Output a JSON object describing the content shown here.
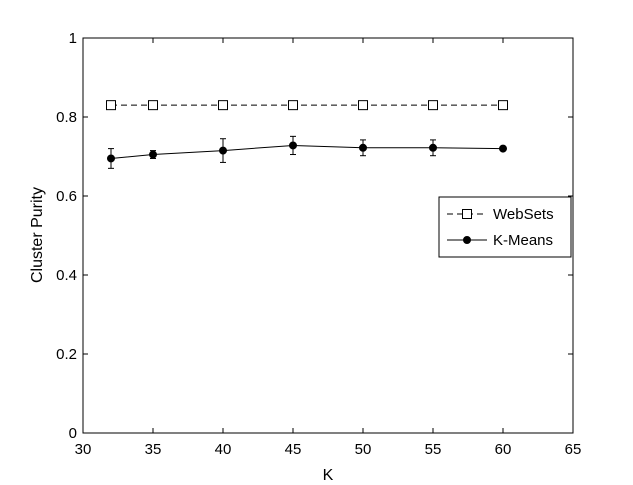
{
  "chart_data": {
    "type": "line",
    "xlabel": "K",
    "ylabel": "Cluster Purity",
    "xlim": [
      30,
      65
    ],
    "ylim": [
      0,
      1
    ],
    "xticks": [
      30,
      35,
      40,
      45,
      50,
      55,
      60,
      65
    ],
    "yticks": [
      0,
      0.2,
      0.4,
      0.6,
      0.8,
      1
    ],
    "grid": false,
    "legend_position": "right",
    "series": [
      {
        "name": "WebSets",
        "marker": "square",
        "line_style": "dashed",
        "color": "#000000",
        "x": [
          32,
          35,
          40,
          45,
          50,
          55,
          60
        ],
        "y": [
          0.83,
          0.83,
          0.83,
          0.83,
          0.83,
          0.83,
          0.83
        ]
      },
      {
        "name": "K-Means",
        "marker": "circle-filled",
        "line_style": "solid",
        "color": "#000000",
        "x": [
          32,
          35,
          40,
          45,
          50,
          55,
          60
        ],
        "y": [
          0.695,
          0.705,
          0.715,
          0.728,
          0.722,
          0.722,
          0.72
        ],
        "error": [
          0.025,
          0.01,
          0.03,
          0.023,
          0.02,
          0.02,
          0.0
        ]
      }
    ]
  }
}
